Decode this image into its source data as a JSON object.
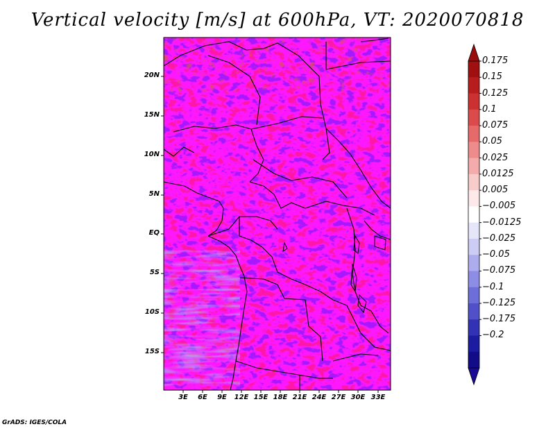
{
  "title": "Vertical velocity [m/s] at 600hPa, VT: 2020070818",
  "footer": "GrADS: IGES/COLA",
  "latitude_labels": [
    "20N",
    "15N",
    "10N",
    "5N",
    "EQ",
    "5S",
    "10S",
    "15S"
  ],
  "longitude_labels": [
    "3E",
    "6E",
    "9E",
    "12E",
    "15E",
    "18E",
    "21E",
    "24E",
    "27E",
    "30E",
    "33E"
  ],
  "colorbar": {
    "labels": [
      "0.175",
      "0.15",
      "0.125",
      "0.1",
      "0.075",
      "0.05",
      "0.025",
      "0.0125",
      "0.005",
      "−0.005",
      "−0.0125",
      "−0.025",
      "−0.05",
      "−0.075",
      "−0.1",
      "−0.125",
      "−0.175",
      "−0.2"
    ],
    "colors": [
      "#a01010",
      "#b81d1d",
      "#cc3131",
      "#dc4b4b",
      "#e66a6a",
      "#ee8b8b",
      "#f4abab",
      "#f9cccc",
      "#fde9e9",
      "#ffffff",
      "#e6e6fb",
      "#ccccf4",
      "#adadee",
      "#8d8de5",
      "#6e6ed8",
      "#5050c8",
      "#3232b4",
      "#1c1ca0",
      "#120c88"
    ],
    "max_color": "#9a0d0d",
    "min_color": "#1a0a96"
  },
  "map": {
    "lon_range": [
      0,
      34.5
    ],
    "lat_range": [
      -20,
      25
    ],
    "frame_color": "#000000"
  }
}
